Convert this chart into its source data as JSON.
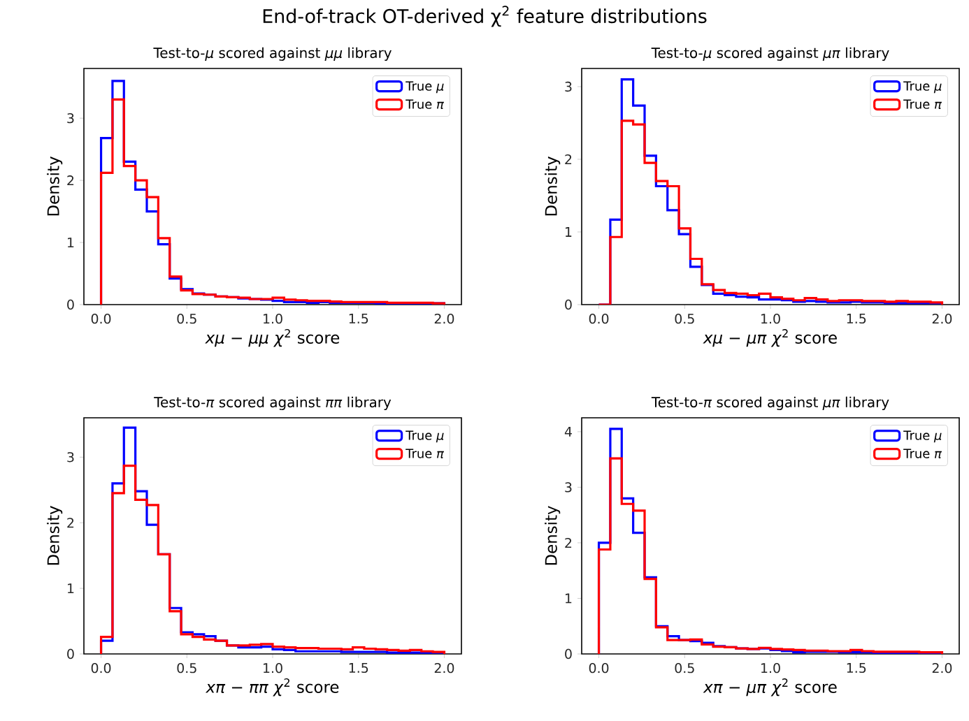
{
  "chart_data": [
    {
      "type": "other",
      "title": "End-of-track OT-derived χ$^{2}$ feature distributions"
    },
    {
      "type": "histogram",
      "title": "Test-to-*μ* scored against *μμ* library",
      "xlabel": "*xμ* − *μμ* *χ*$^{2}$ score",
      "ylabel": "Density",
      "legend": "top right",
      "bins": [
        0,
        0.0667,
        0.1333,
        0.2,
        0.2667,
        0.3333,
        0.4,
        0.4667,
        0.5333,
        0.6,
        0.6667,
        0.7333,
        0.8,
        0.8667,
        0.9333,
        1.0,
        1.0667,
        1.1333,
        1.2,
        1.2667,
        1.3333,
        1.4,
        1.4667,
        1.5333,
        1.6,
        1.6667,
        1.7333,
        1.8,
        1.8667,
        1.9333,
        2.0
      ],
      "xlim": [
        -0.1,
        2.1
      ],
      "ylim": [
        0,
        3.8
      ],
      "xticks": [
        {
          "value": 0,
          "label": "0.0"
        },
        {
          "value": 0.5,
          "label": "0.5"
        },
        {
          "value": 1,
          "label": "1.0"
        },
        {
          "value": 1.5,
          "label": "1.5"
        },
        {
          "value": 2,
          "label": "2.0"
        }
      ],
      "yticks": [
        0,
        1,
        2,
        3
      ],
      "series": [
        {
          "name": "True *μ*",
          "color": "#0000ff",
          "values": [
            2.68,
            3.6,
            2.3,
            1.85,
            1.5,
            0.97,
            0.42,
            0.25,
            0.18,
            0.16,
            0.13,
            0.12,
            0.1,
            0.09,
            0.08,
            0.06,
            0.04,
            0.04,
            0.03,
            0.04,
            0.03,
            0.03,
            0.03,
            0.03,
            0.02,
            0.02,
            0.02,
            0.02,
            0.02,
            0.02
          ]
        },
        {
          "name": "True *π*",
          "color": "#ff0000",
          "values": [
            2.12,
            3.3,
            2.23,
            2.0,
            1.73,
            1.07,
            0.45,
            0.23,
            0.17,
            0.16,
            0.13,
            0.12,
            0.11,
            0.09,
            0.09,
            0.11,
            0.08,
            0.07,
            0.06,
            0.06,
            0.05,
            0.04,
            0.04,
            0.04,
            0.04,
            0.03,
            0.03,
            0.03,
            0.03,
            0.02
          ]
        }
      ]
    },
    {
      "type": "histogram",
      "title": "Test-to-*μ* scored against *μπ* library",
      "xlabel": "*xμ* − *μπ* *χ*$^{2}$ score",
      "ylabel": "Density",
      "legend": "top right",
      "bins": [
        0,
        0.0667,
        0.1333,
        0.2,
        0.2667,
        0.3333,
        0.4,
        0.4667,
        0.5333,
        0.6,
        0.6667,
        0.7333,
        0.8,
        0.8667,
        0.9333,
        1.0,
        1.0667,
        1.1333,
        1.2,
        1.2667,
        1.3333,
        1.4,
        1.4667,
        1.5333,
        1.6,
        1.6667,
        1.7333,
        1.8,
        1.8667,
        1.9333,
        2.0
      ],
      "xlim": [
        -0.1,
        2.1
      ],
      "ylim": [
        0,
        3.25
      ],
      "xticks": [
        {
          "value": 0,
          "label": "0.0"
        },
        {
          "value": 0.5,
          "label": "0.5"
        },
        {
          "value": 1,
          "label": "1.0"
        },
        {
          "value": 1.5,
          "label": "1.5"
        },
        {
          "value": 2,
          "label": "2.0"
        }
      ],
      "yticks": [
        0,
        1,
        2,
        3
      ],
      "series": [
        {
          "name": "True *μ*",
          "color": "#0000ff",
          "values": [
            0,
            1.17,
            3.1,
            2.74,
            2.05,
            1.63,
            1.3,
            0.97,
            0.52,
            0.27,
            0.15,
            0.13,
            0.11,
            0.1,
            0.07,
            0.07,
            0.06,
            0.04,
            0.05,
            0.04,
            0.03,
            0.03,
            0.04,
            0.03,
            0.03,
            0.02,
            0.02,
            0.02,
            0.02,
            0.02
          ]
        },
        {
          "name": "True *π*",
          "color": "#ff0000",
          "values": [
            0,
            0.93,
            2.53,
            2.48,
            1.95,
            1.7,
            1.63,
            1.05,
            0.63,
            0.28,
            0.2,
            0.16,
            0.15,
            0.13,
            0.15,
            0.1,
            0.08,
            0.06,
            0.09,
            0.07,
            0.05,
            0.06,
            0.06,
            0.05,
            0.05,
            0.04,
            0.05,
            0.04,
            0.04,
            0.03
          ]
        }
      ]
    },
    {
      "type": "histogram",
      "title": "Test-to-*π* scored against *ππ* library",
      "xlabel": "*xπ* − *ππ* *χ*$^{2}$ score",
      "ylabel": "Density",
      "legend": "top right",
      "bins": [
        0,
        0.0667,
        0.1333,
        0.2,
        0.2667,
        0.3333,
        0.4,
        0.4667,
        0.5333,
        0.6,
        0.6667,
        0.7333,
        0.8,
        0.8667,
        0.9333,
        1.0,
        1.0667,
        1.1333,
        1.2,
        1.2667,
        1.3333,
        1.4,
        1.4667,
        1.5333,
        1.6,
        1.6667,
        1.7333,
        1.8,
        1.8667,
        1.9333,
        2.0
      ],
      "xlim": [
        -0.1,
        2.1
      ],
      "ylim": [
        0,
        3.6
      ],
      "xticks": [
        {
          "value": 0,
          "label": "0.0"
        },
        {
          "value": 0.5,
          "label": "0.5"
        },
        {
          "value": 1,
          "label": "1.0"
        },
        {
          "value": 1.5,
          "label": "1.5"
        },
        {
          "value": 2,
          "label": "2.0"
        }
      ],
      "yticks": [
        0,
        1,
        2,
        3
      ],
      "series": [
        {
          "name": "True *μ*",
          "color": "#0000ff",
          "values": [
            0.2,
            2.6,
            3.45,
            2.48,
            1.97,
            1.52,
            0.7,
            0.33,
            0.3,
            0.27,
            0.2,
            0.13,
            0.1,
            0.1,
            0.11,
            0.07,
            0.06,
            0.04,
            0.04,
            0.04,
            0.04,
            0.03,
            0.03,
            0.03,
            0.03,
            0.02,
            0.02,
            0.02,
            0.02,
            0.02
          ]
        },
        {
          "name": "True *π*",
          "color": "#ff0000",
          "values": [
            0.26,
            2.45,
            2.87,
            2.35,
            2.27,
            1.52,
            0.65,
            0.3,
            0.26,
            0.22,
            0.2,
            0.13,
            0.13,
            0.14,
            0.15,
            0.11,
            0.1,
            0.09,
            0.09,
            0.08,
            0.08,
            0.07,
            0.1,
            0.08,
            0.07,
            0.06,
            0.05,
            0.06,
            0.04,
            0.03
          ]
        }
      ]
    },
    {
      "type": "histogram",
      "title": "Test-to-*π* scored against *μπ* library",
      "xlabel": "*xπ* − *μπ* *χ*$^{2}$ score",
      "ylabel": "Density",
      "legend": "top right",
      "bins": [
        0,
        0.0667,
        0.1333,
        0.2,
        0.2667,
        0.3333,
        0.4,
        0.4667,
        0.5333,
        0.6,
        0.6667,
        0.7333,
        0.8,
        0.8667,
        0.9333,
        1.0,
        1.0667,
        1.1333,
        1.2,
        1.2667,
        1.3333,
        1.4,
        1.4667,
        1.5333,
        1.6,
        1.6667,
        1.7333,
        1.8,
        1.8667,
        1.9333,
        2.0
      ],
      "xlim": [
        -0.1,
        2.1
      ],
      "ylim": [
        0,
        4.25
      ],
      "xticks": [
        {
          "value": 0,
          "label": "0.0"
        },
        {
          "value": 0.5,
          "label": "0.5"
        },
        {
          "value": 1,
          "label": "1.0"
        },
        {
          "value": 1.5,
          "label": "1.5"
        },
        {
          "value": 2,
          "label": "2.0"
        }
      ],
      "yticks": [
        0,
        1,
        2,
        3,
        4
      ],
      "series": [
        {
          "name": "True *μ*",
          "color": "#0000ff",
          "values": [
            2.0,
            4.05,
            2.8,
            2.18,
            1.38,
            0.5,
            0.32,
            0.25,
            0.23,
            0.2,
            0.14,
            0.12,
            0.1,
            0.09,
            0.1,
            0.07,
            0.05,
            0.03,
            0.04,
            0.04,
            0.04,
            0.03,
            0.03,
            0.03,
            0.02,
            0.02,
            0.02,
            0.02,
            0.02,
            0.02
          ]
        },
        {
          "name": "True *π*",
          "color": "#ff0000",
          "values": [
            1.88,
            3.52,
            2.7,
            2.58,
            1.35,
            0.48,
            0.25,
            0.25,
            0.26,
            0.17,
            0.13,
            0.12,
            0.1,
            0.09,
            0.11,
            0.09,
            0.08,
            0.07,
            0.06,
            0.06,
            0.05,
            0.05,
            0.07,
            0.05,
            0.04,
            0.04,
            0.04,
            0.04,
            0.03,
            0.03
          ]
        }
      ]
    }
  ]
}
